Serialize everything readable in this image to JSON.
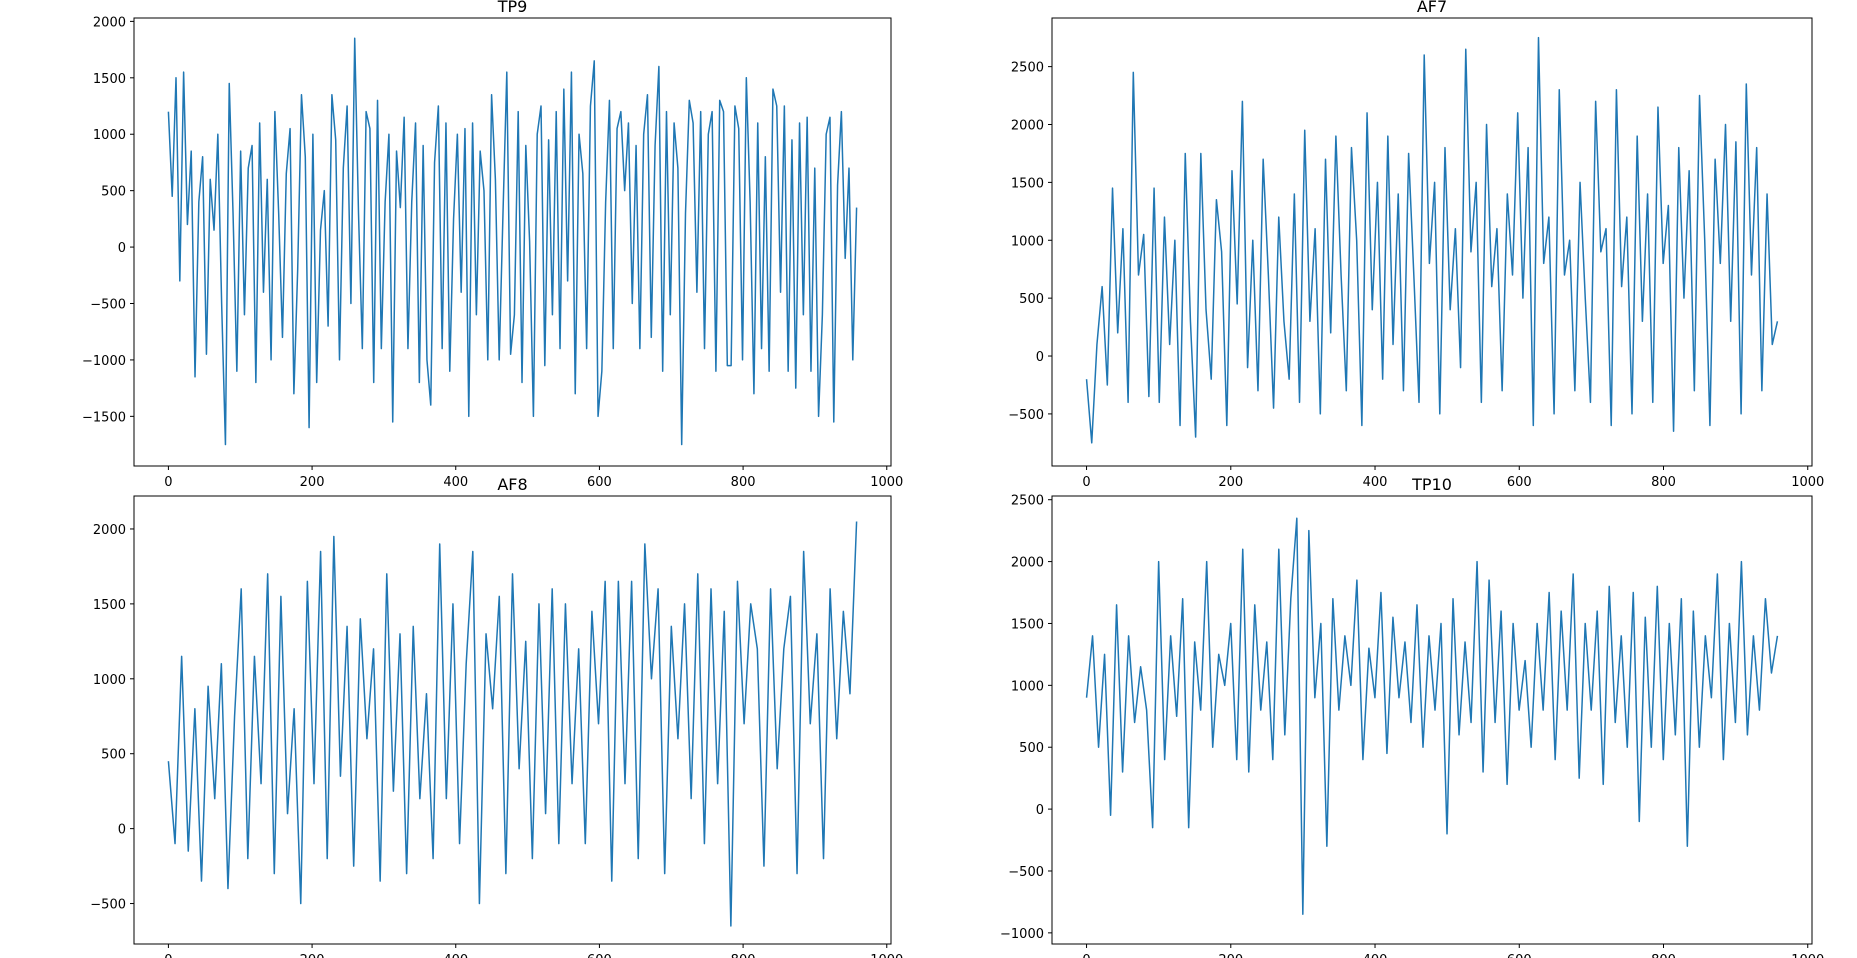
{
  "figure": {
    "description_color": "#1f77b4",
    "line_color": "#1f77b4"
  },
  "chart_data": [
    {
      "type": "line",
      "title": "TP9",
      "xlabel": "",
      "ylabel": "",
      "xlim": [
        -47.9,
        1005.9
      ],
      "ylim": [
        -1940,
        2030
      ],
      "xticks": [
        0,
        200,
        400,
        600,
        800,
        1000
      ],
      "yticks": [
        -1500,
        -1000,
        -500,
        0,
        500,
        1000,
        1500,
        2000
      ],
      "xtick_labels": [
        "0",
        "200",
        "400",
        "600",
        "800",
        "1000"
      ],
      "ytick_labels": [
        "−1500",
        "−1000",
        "−500",
        "0",
        "500",
        "1000",
        "1500",
        "2000"
      ],
      "grid": false,
      "n_points": 959,
      "series": [
        {
          "x_start": 0,
          "x_end": 958,
          "values": [
            1200,
            450,
            1500,
            -300,
            1550,
            200,
            850,
            -1150,
            400,
            800,
            -950,
            600,
            150,
            1000,
            -500,
            -1750,
            1450,
            300,
            -1100,
            850,
            -600,
            700,
            900,
            -1200,
            1100,
            -400,
            600,
            -1000,
            1200,
            300,
            -800,
            650,
            1050,
            -1300,
            -200,
            1350,
            800,
            -1600,
            1000,
            -1200,
            150,
            500,
            -700,
            1350,
            950,
            -1000,
            700,
            1250,
            -500,
            1850,
            300,
            -900,
            1200,
            1050,
            -1200,
            1300,
            -900,
            400,
            1000,
            -1550,
            850,
            350,
            1150,
            -900,
            400,
            1100,
            -1200,
            900,
            -1000,
            -1400,
            750,
            1250,
            -900,
            1100,
            -1100,
            250,
            1000,
            -400,
            1050,
            -1500,
            1100,
            -600,
            850,
            500,
            -1000,
            1350,
            600,
            -1000,
            300,
            1550,
            -950,
            -600,
            1200,
            -1200,
            900,
            50,
            -1500,
            1000,
            1250,
            -1050,
            950,
            -600,
            1200,
            -900,
            1400,
            -300,
            1550,
            -1300,
            1000,
            650,
            -900,
            1250,
            1650,
            -1500,
            -1100,
            400,
            1300,
            -900,
            1050,
            1200,
            500,
            1100,
            -500,
            900,
            -900,
            1000,
            1350,
            -800,
            900,
            1600,
            -1100,
            1200,
            -600,
            1100,
            700,
            -1750,
            300,
            1300,
            1100,
            -400,
            1200,
            -900,
            1000,
            1200,
            -1100,
            1300,
            1200,
            -1050,
            -1050,
            1250,
            1050,
            -1000,
            1500,
            400,
            -1300,
            1100,
            -900,
            800,
            -1100,
            1400,
            1250,
            -400,
            1250,
            -1100,
            950,
            -1250,
            1100,
            -600,
            1150,
            -1100,
            700,
            -1500,
            -600,
            1000,
            1150,
            -1550,
            550,
            1200,
            -100,
            700,
            -1000,
            350
          ]
        }
      ]
    },
    {
      "type": "line",
      "title": "AF7",
      "xlabel": "",
      "ylabel": "",
      "xlim": [
        -47.9,
        1005.9
      ],
      "ylim": [
        -950,
        2920
      ],
      "xticks": [
        0,
        200,
        400,
        600,
        800,
        1000
      ],
      "yticks": [
        -500,
        0,
        500,
        1000,
        1500,
        2000,
        2500
      ],
      "xtick_labels": [
        "0",
        "200",
        "400",
        "600",
        "800",
        "1000"
      ],
      "ytick_labels": [
        "−500",
        "0",
        "500",
        "1000",
        "1500",
        "2000",
        "2500"
      ],
      "grid": false,
      "n_points": 959,
      "series": [
        {
          "x_start": 0,
          "x_end": 958,
          "values": [
            -200,
            -750,
            100,
            600,
            -250,
            1450,
            200,
            1100,
            -400,
            2450,
            700,
            1050,
            -350,
            1450,
            -400,
            1200,
            100,
            1000,
            -600,
            1750,
            300,
            -700,
            1750,
            400,
            -200,
            1350,
            900,
            -600,
            1600,
            450,
            2200,
            -100,
            1000,
            -300,
            1700,
            700,
            -450,
            1200,
            300,
            -200,
            1400,
            -400,
            1950,
            300,
            1100,
            -500,
            1700,
            200,
            1900,
            700,
            -300,
            1800,
            1000,
            -600,
            2100,
            400,
            1500,
            -200,
            1900,
            100,
            1400,
            -300,
            1750,
            700,
            -400,
            2600,
            800,
            1500,
            -500,
            1800,
            400,
            1100,
            -100,
            2650,
            900,
            1500,
            -400,
            2000,
            600,
            1100,
            -300,
            1400,
            700,
            2100,
            500,
            1800,
            -600,
            2750,
            800,
            1200,
            -500,
            2300,
            700,
            1000,
            -300,
            1500,
            500,
            -400,
            2200,
            900,
            1100,
            -600,
            2300,
            600,
            1200,
            -500,
            1900,
            300,
            1400,
            -400,
            2150,
            800,
            1300,
            -650,
            1800,
            500,
            1600,
            -300,
            2250,
            1000,
            -600,
            1700,
            800,
            2000,
            300,
            1850,
            -500,
            2350,
            700,
            1800,
            -300,
            1400,
            100,
            300
          ]
        }
      ]
    },
    {
      "type": "line",
      "title": "AF8",
      "xlabel": "",
      "ylabel": "",
      "xlim": [
        -47.9,
        1005.9
      ],
      "ylim": [
        -770,
        2220
      ],
      "xticks": [
        0,
        200,
        400,
        600,
        800,
        1000
      ],
      "yticks": [
        -500,
        0,
        500,
        1000,
        1500,
        2000
      ],
      "xtick_labels": [
        "0",
        "200",
        "400",
        "600",
        "800",
        "1000"
      ],
      "ytick_labels": [
        "−500",
        "0",
        "500",
        "1000",
        "1500",
        "2000"
      ],
      "grid": false,
      "n_points": 959,
      "series": [
        {
          "x_start": 0,
          "x_end": 958,
          "values": [
            450,
            -100,
            1150,
            -150,
            800,
            -350,
            950,
            200,
            1100,
            -400,
            750,
            1600,
            -200,
            1150,
            300,
            1700,
            -300,
            1550,
            100,
            800,
            -500,
            1650,
            300,
            1850,
            -200,
            1950,
            350,
            1350,
            -250,
            1400,
            600,
            1200,
            -350,
            1700,
            250,
            1300,
            -300,
            1350,
            200,
            900,
            -200,
            1900,
            200,
            1500,
            -100,
            1100,
            1850,
            -500,
            1300,
            800,
            1550,
            -300,
            1700,
            400,
            1250,
            -200,
            1500,
            100,
            1600,
            -100,
            1500,
            300,
            1200,
            -100,
            1450,
            700,
            1650,
            -350,
            1650,
            300,
            1650,
            -200,
            1900,
            1000,
            1600,
            -300,
            1350,
            600,
            1500,
            200,
            1700,
            -100,
            1600,
            300,
            1450,
            -650,
            1650,
            700,
            1500,
            1200,
            -250,
            1600,
            400,
            1200,
            1550,
            -300,
            1850,
            700,
            1300,
            -200,
            1600,
            600,
            1450,
            900,
            2050
          ]
        }
      ]
    },
    {
      "type": "line",
      "title": "TP10",
      "xlabel": "",
      "ylabel": "",
      "xlim": [
        -47.9,
        1005.9
      ],
      "ylim": [
        -1090,
        2530
      ],
      "xticks": [
        0,
        200,
        400,
        600,
        800,
        1000
      ],
      "yticks": [
        -1000,
        -500,
        0,
        500,
        1000,
        1500,
        2000,
        2500
      ],
      "xtick_labels": [
        "0",
        "200",
        "400",
        "600",
        "800",
        "1000"
      ],
      "ytick_labels": [
        "−1000",
        "−500",
        "0",
        "500",
        "1000",
        "1500",
        "2000",
        "2500"
      ],
      "grid": false,
      "n_points": 959,
      "series": [
        {
          "x_start": 0,
          "x_end": 958,
          "values": [
            900,
            1400,
            500,
            1250,
            -50,
            1650,
            300,
            1400,
            700,
            1150,
            800,
            -150,
            2000,
            400,
            1400,
            750,
            1700,
            -150,
            1350,
            800,
            2000,
            500,
            1250,
            1000,
            1500,
            400,
            2100,
            300,
            1650,
            800,
            1350,
            400,
            2100,
            600,
            1700,
            2350,
            -850,
            2250,
            900,
            1500,
            -300,
            1700,
            800,
            1400,
            1000,
            1850,
            400,
            1300,
            900,
            1750,
            450,
            1550,
            900,
            1350,
            700,
            1650,
            500,
            1400,
            800,
            1500,
            -200,
            1700,
            600,
            1350,
            700,
            2000,
            300,
            1850,
            700,
            1600,
            200,
            1500,
            800,
            1200,
            500,
            1500,
            800,
            1750,
            400,
            1600,
            800,
            1900,
            250,
            1500,
            800,
            1600,
            200,
            1800,
            700,
            1400,
            500,
            1750,
            -100,
            1550,
            500,
            1800,
            400,
            1500,
            600,
            1700,
            -300,
            1600,
            500,
            1400,
            900,
            1900,
            400,
            1500,
            700,
            2000,
            600,
            1400,
            800,
            1700,
            1100,
            1400
          ]
        }
      ]
    }
  ]
}
